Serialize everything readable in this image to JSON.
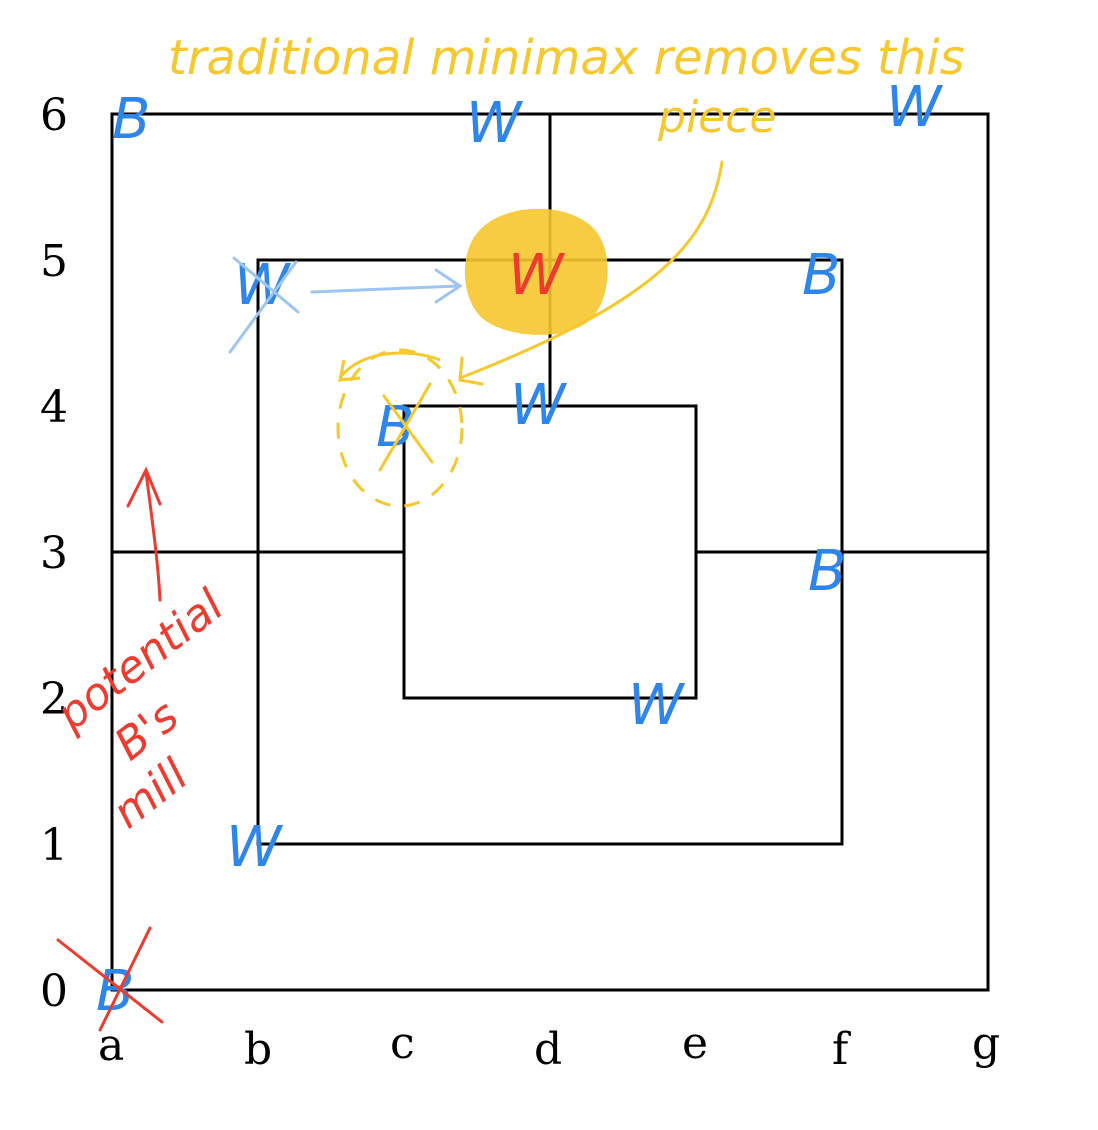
{
  "board": {
    "files": [
      "a",
      "b",
      "c",
      "d",
      "e",
      "f",
      "g"
    ],
    "ranks": [
      "0",
      "1",
      "2",
      "3",
      "4",
      "5",
      "6"
    ]
  },
  "pieces": [
    {
      "id": "a6",
      "label": "B",
      "color": "#2f86ea"
    },
    {
      "id": "d6",
      "label": "W",
      "color": "#2f86ea"
    },
    {
      "id": "g6",
      "label": "W",
      "color": "#2f86ea"
    },
    {
      "id": "b5",
      "label": "W",
      "color": "#2f86ea",
      "crossed": true
    },
    {
      "id": "d5",
      "label": "W",
      "color": "#ee3b2f",
      "highlight": true
    },
    {
      "id": "f5",
      "label": "B",
      "color": "#2f86ea"
    },
    {
      "id": "c4",
      "label": "B",
      "color": "#2f86ea",
      "crossed": true,
      "circled": true
    },
    {
      "id": "d4",
      "label": "W",
      "color": "#2f86ea"
    },
    {
      "id": "f3",
      "label": "B",
      "color": "#2f86ea"
    },
    {
      "id": "e2",
      "label": "W",
      "color": "#2f86ea"
    },
    {
      "id": "b1",
      "label": "W",
      "color": "#2f86ea"
    },
    {
      "id": "a0",
      "label": "B",
      "color": "#2f86ea",
      "crossed": true
    }
  ],
  "annotations": {
    "top_line1": "traditional minimax removes this",
    "top_line2": "piece",
    "side_line1": "potential",
    "side_line2": "B's",
    "side_line3": "mill"
  },
  "colors": {
    "blue": "#2f86ea",
    "red": "#ee3b2f",
    "yellow": "#f7c72e",
    "light_blue": "#9cc5f2"
  }
}
